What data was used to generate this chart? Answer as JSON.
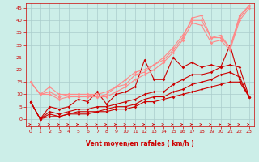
{
  "background_color": "#cceee8",
  "grid_color": "#aacccc",
  "xlabel": "Vent moyen/en rafales ( km/h )",
  "xlabel_color": "#cc0000",
  "tick_color": "#cc0000",
  "ylim": [
    -3,
    47
  ],
  "xlim": [
    -0.5,
    23.5
  ],
  "yticks": [
    0,
    5,
    10,
    15,
    20,
    25,
    30,
    35,
    40,
    45
  ],
  "xticks": [
    0,
    1,
    2,
    3,
    4,
    5,
    6,
    7,
    8,
    9,
    10,
    11,
    12,
    13,
    14,
    15,
    16,
    17,
    18,
    19,
    20,
    21,
    22,
    23
  ],
  "lines": [
    {
      "x": [
        0,
        1,
        2,
        3,
        4,
        5,
        6,
        7,
        8,
        9,
        10,
        11,
        12,
        13,
        14,
        15,
        16,
        17,
        18,
        19,
        20,
        21,
        22,
        23
      ],
      "y": [
        7,
        0,
        5,
        4,
        5,
        8,
        7,
        11,
        6,
        10,
        11,
        13,
        24,
        16,
        16,
        25,
        21,
        23,
        21,
        22,
        21,
        30,
        16,
        9
      ],
      "color": "#cc0000",
      "lw": 0.8,
      "marker": "D",
      "ms": 1.8
    },
    {
      "x": [
        0,
        1,
        2,
        3,
        4,
        5,
        6,
        7,
        8,
        9,
        10,
        11,
        12,
        13,
        14,
        15,
        16,
        17,
        18,
        19,
        20,
        21,
        22,
        23
      ],
      "y": [
        7,
        0,
        3,
        2,
        3,
        4,
        4,
        5,
        5,
        6,
        7,
        8,
        10,
        11,
        11,
        14,
        16,
        18,
        18,
        19,
        21,
        22,
        21,
        9
      ],
      "color": "#cc0000",
      "lw": 0.8,
      "marker": "D",
      "ms": 1.8
    },
    {
      "x": [
        0,
        1,
        2,
        3,
        4,
        5,
        6,
        7,
        8,
        9,
        10,
        11,
        12,
        13,
        14,
        15,
        16,
        17,
        18,
        19,
        20,
        21,
        22,
        23
      ],
      "y": [
        7,
        0,
        2,
        1,
        2,
        3,
        3,
        3,
        4,
        5,
        5,
        6,
        8,
        9,
        9,
        11,
        12,
        14,
        15,
        16,
        18,
        19,
        17,
        9
      ],
      "color": "#cc0000",
      "lw": 0.8,
      "marker": "D",
      "ms": 1.8
    },
    {
      "x": [
        0,
        1,
        2,
        3,
        4,
        5,
        6,
        7,
        8,
        9,
        10,
        11,
        12,
        13,
        14,
        15,
        16,
        17,
        18,
        19,
        20,
        21,
        22,
        23
      ],
      "y": [
        7,
        0,
        1,
        1,
        2,
        2,
        2,
        3,
        3,
        4,
        4,
        5,
        7,
        7,
        8,
        9,
        10,
        11,
        12,
        13,
        14,
        15,
        15,
        9
      ],
      "color": "#cc0000",
      "lw": 0.8,
      "marker": "D",
      "ms": 1.8
    },
    {
      "x": [
        0,
        1,
        2,
        3,
        4,
        5,
        6,
        7,
        8,
        9,
        10,
        11,
        12,
        13,
        14,
        15,
        16,
        17,
        18,
        19,
        20,
        21,
        22,
        23
      ],
      "y": [
        15,
        10,
        11,
        9,
        10,
        10,
        10,
        9,
        10,
        13,
        14,
        18,
        19,
        22,
        24,
        28,
        33,
        41,
        42,
        33,
        34,
        29,
        42,
        46
      ],
      "color": "#ff8888",
      "lw": 0.8,
      "marker": "D",
      "ms": 1.8
    },
    {
      "x": [
        0,
        1,
        2,
        3,
        4,
        5,
        6,
        7,
        8,
        9,
        10,
        11,
        12,
        13,
        14,
        15,
        16,
        17,
        18,
        19,
        20,
        21,
        22,
        23
      ],
      "y": [
        15,
        10,
        13,
        10,
        10,
        10,
        10,
        10,
        11,
        13,
        16,
        19,
        20,
        22,
        25,
        29,
        34,
        40,
        40,
        33,
        33,
        29,
        41,
        46
      ],
      "color": "#ff8888",
      "lw": 0.8,
      "marker": "D",
      "ms": 1.8
    },
    {
      "x": [
        0,
        1,
        2,
        3,
        4,
        5,
        6,
        7,
        8,
        9,
        10,
        11,
        12,
        13,
        14,
        15,
        16,
        17,
        18,
        19,
        20,
        21,
        22,
        23
      ],
      "y": [
        15,
        10,
        10,
        8,
        9,
        9,
        9,
        9,
        9,
        11,
        13,
        16,
        18,
        20,
        23,
        27,
        32,
        39,
        38,
        31,
        32,
        28,
        40,
        45
      ],
      "color": "#ff8888",
      "lw": 0.8,
      "marker": "D",
      "ms": 1.8
    }
  ]
}
